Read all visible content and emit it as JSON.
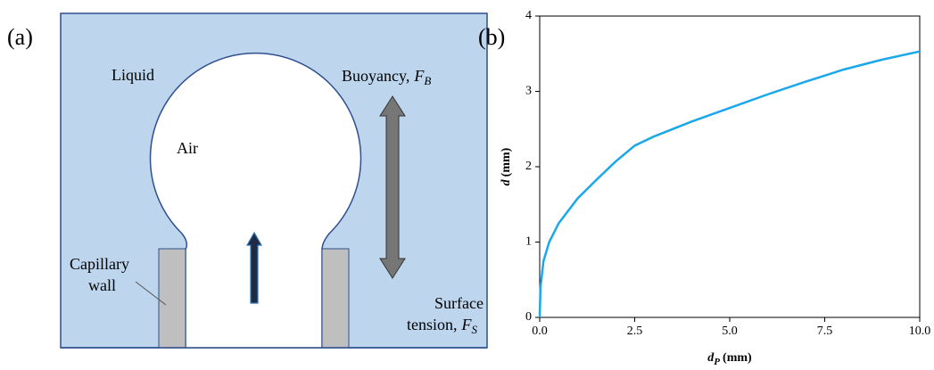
{
  "diagram": {
    "panel_label": "(a)",
    "liquid": "Liquid",
    "air": "Air",
    "buoyancy": {
      "text": "Buoyancy,",
      "symbol": "F",
      "subscript": "B"
    },
    "capillary": [
      "Capillary",
      "wall"
    ],
    "surface": {
      "line1": "Surface",
      "text": "tension,",
      "symbol": "F",
      "subscript": "S"
    }
  },
  "chart_data": {
    "type": "line",
    "panel_label": "(b)",
    "xlabel": {
      "symbol": "d",
      "subscript": "P",
      "unit": "(mm)"
    },
    "ylabel": {
      "symbol": "d",
      "unit": "(mm)"
    },
    "x": [
      0,
      0.02,
      0.1,
      0.25,
      0.5,
      1,
      1.5,
      2,
      2.5,
      3,
      4,
      5,
      6,
      7,
      7.5,
      8,
      9,
      10
    ],
    "values": [
      0,
      0.4,
      0.75,
      1.0,
      1.25,
      1.58,
      1.83,
      2.07,
      2.28,
      2.4,
      2.6,
      2.78,
      2.96,
      3.13,
      3.21,
      3.29,
      3.42,
      3.53
    ],
    "color": "#1aa7ec",
    "xlim": [
      0,
      10
    ],
    "ylim": [
      0,
      4
    ],
    "xticks": [
      {
        "value": 0,
        "label": "0.0"
      },
      {
        "value": 2.5,
        "label": "2.5"
      },
      {
        "value": 5,
        "label": "5.0"
      },
      {
        "value": 7.5,
        "label": "7.5"
      },
      {
        "value": 10,
        "label": "10.0"
      }
    ],
    "yticks": [
      0,
      1,
      2,
      3,
      4
    ]
  }
}
